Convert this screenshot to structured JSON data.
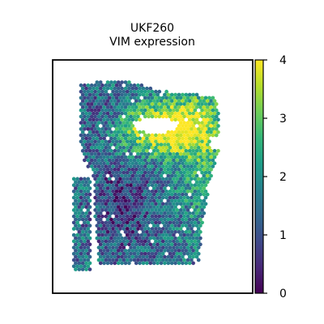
{
  "chart_data": {
    "type": "scatter",
    "subtype": "spatial-transcriptomics-hex-spots",
    "title": [
      "UKF260",
      "VIM expression"
    ],
    "xlabel": "",
    "ylabel": "",
    "grid": false,
    "axes_ticks": false,
    "colorbar": {
      "label": "",
      "colormap": "viridis",
      "range": [
        0,
        4
      ],
      "ticks": [
        0,
        1,
        2,
        3,
        4
      ],
      "tick_labels": [
        "0",
        "1",
        "2",
        "3",
        "4"
      ],
      "placement": "right"
    },
    "spot_grid": {
      "columns": 50,
      "rows": 64,
      "value_min": 0,
      "value_max": 4
    },
    "tissue_regions": [
      {
        "name": "left-strip",
        "shape": "polygon",
        "points": [
          [
            3,
            44
          ],
          [
            7,
            44
          ],
          [
            8,
            46
          ],
          [
            8,
            84
          ],
          [
            7,
            93
          ],
          [
            6,
            95
          ],
          [
            5,
            92
          ],
          [
            4,
            86
          ],
          [
            3,
            84
          ]
        ]
      },
      {
        "name": "main-block",
        "shape": "polygon",
        "points": [
          [
            5,
            5
          ],
          [
            8,
            4
          ],
          [
            15,
            3
          ],
          [
            20,
            4
          ],
          [
            24,
            6
          ],
          [
            30,
            8
          ],
          [
            36,
            8
          ],
          [
            40,
            10
          ],
          [
            42,
            10
          ],
          [
            43,
            12
          ],
          [
            44,
            18
          ],
          [
            44,
            32
          ],
          [
            42,
            40
          ],
          [
            41,
            46
          ],
          [
            40,
            56
          ],
          [
            39,
            64
          ],
          [
            38,
            80
          ],
          [
            10,
            80
          ],
          [
            9,
            60
          ],
          [
            9,
            46
          ],
          [
            8,
            40
          ],
          [
            6,
            38
          ],
          [
            5,
            30
          ],
          [
            5,
            18
          ]
        ]
      }
    ],
    "holes": [
      {
        "name": "upper-right-gap",
        "shape": "ellipse",
        "center": [
          26,
          22
        ],
        "radii": [
          6.5,
          3.2
        ]
      },
      {
        "name": "right-edge-gap",
        "shape": "ellipse",
        "center": [
          42.5,
          29
        ],
        "radii": [
          1.5,
          2.5
        ]
      }
    ],
    "expression_pattern": {
      "base": 1.6,
      "noise": 0.9,
      "components": [
        {
          "description": "high band around upper-right hole",
          "center": [
            26,
            24
          ],
          "radii": [
            13,
            10
          ],
          "amplitude": 2.2
        },
        {
          "description": "high upper-right region",
          "center": [
            36,
            20
          ],
          "radii": [
            10,
            14
          ],
          "amplitude": 1.4
        },
        {
          "description": "right side moderately high",
          "center": [
            40,
            44
          ],
          "radii": [
            8,
            18
          ],
          "amplitude": 0.8
        },
        {
          "description": "low central-left region",
          "center": [
            17,
            55
          ],
          "radii": [
            10,
            22
          ],
          "amplitude": -0.9
        },
        {
          "description": "low upper-left region",
          "center": [
            11,
            20
          ],
          "radii": [
            8,
            12
          ],
          "amplitude": -0.7
        }
      ]
    }
  }
}
